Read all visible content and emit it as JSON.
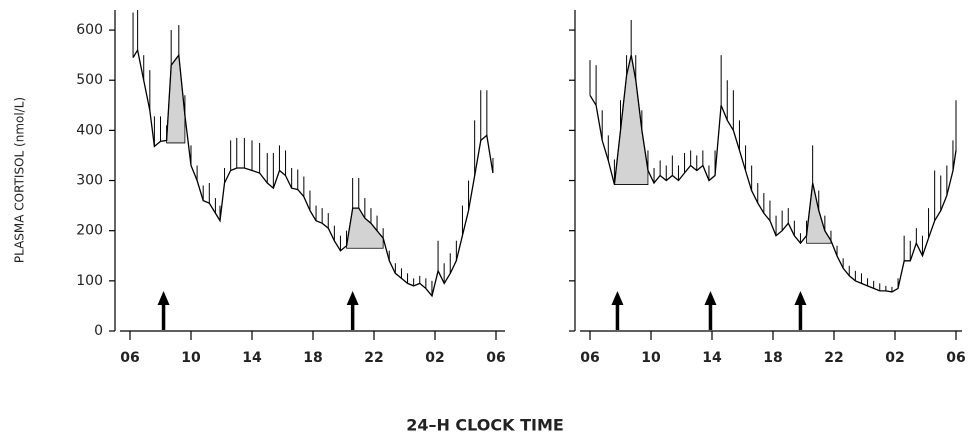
{
  "xlabel": "24–H CLOCK TIME",
  "chart_data": [
    {
      "type": "line",
      "ylabel": "PLASMA CORTISOL (nmol/L)",
      "xlim": [
        6,
        30
      ],
      "ylim": [
        0,
        640
      ],
      "xticks": [
        {
          "value": 6,
          "label": "06"
        },
        10,
        14,
        18,
        22,
        {
          "value": 26,
          "label": "02"
        },
        {
          "value": 30,
          "label": "06"
        }
      ],
      "yticks": [
        0,
        100,
        200,
        300,
        400,
        500,
        600
      ],
      "color": "#000000",
      "shade_color": "#d3d3d3",
      "x": [
        6.2,
        6.5,
        6.9,
        7.3,
        7.6,
        8.0,
        8.4,
        8.7,
        9.2,
        9.6,
        10.0,
        10.4,
        10.8,
        11.2,
        11.6,
        11.9,
        12.2,
        12.6,
        13.0,
        13.5,
        14.0,
        14.5,
        15.0,
        15.4,
        15.8,
        16.2,
        16.6,
        17.0,
        17.4,
        17.8,
        18.2,
        18.6,
        19.0,
        19.4,
        19.8,
        20.2,
        20.6,
        21.0,
        21.4,
        21.8,
        22.2,
        22.6,
        23.0,
        23.4,
        23.8,
        24.2,
        24.6,
        25.0,
        25.4,
        25.8,
        26.2,
        26.6,
        27.0,
        27.4,
        27.8,
        28.2,
        28.6,
        29.0,
        29.4,
        29.8
      ],
      "values": [
        545,
        560,
        500,
        440,
        368,
        378,
        380,
        530,
        550,
        430,
        330,
        300,
        260,
        255,
        235,
        220,
        295,
        320,
        325,
        325,
        320,
        315,
        295,
        285,
        320,
        310,
        285,
        282,
        268,
        240,
        220,
        215,
        205,
        180,
        160,
        170,
        245,
        245,
        225,
        215,
        200,
        185,
        140,
        115,
        105,
        95,
        90,
        95,
        85,
        70,
        120,
        95,
        115,
        140,
        190,
        240,
        310,
        380,
        390,
        315
      ],
      "errors": [
        90,
        80,
        50,
        80,
        60,
        50,
        30,
        70,
        60,
        40,
        40,
        30,
        30,
        40,
        30,
        30,
        30,
        60,
        60,
        60,
        60,
        60,
        60,
        70,
        50,
        50,
        40,
        40,
        40,
        40,
        30,
        30,
        30,
        30,
        30,
        30,
        60,
        60,
        40,
        30,
        30,
        20,
        20,
        20,
        20,
        20,
        15,
        15,
        20,
        30,
        60,
        40,
        40,
        40,
        60,
        60,
        110,
        100,
        90,
        30
      ],
      "pulses": [
        {
          "x": [
            8.4,
            9.6
          ],
          "baseline": 375
        },
        {
          "x": [
            20.2,
            22.6
          ],
          "baseline": 165
        }
      ],
      "arrows": [
        8.2,
        20.6
      ]
    },
    {
      "type": "line",
      "xlim": [
        6,
        30
      ],
      "ylim": [
        0,
        640
      ],
      "xticks": [
        {
          "value": 6,
          "label": "06"
        },
        10,
        14,
        18,
        22,
        {
          "value": 26,
          "label": "02"
        },
        {
          "value": 30,
          "label": "06"
        }
      ],
      "yticks": [
        0,
        100,
        200,
        300,
        400,
        500,
        600
      ],
      "color": "#000000",
      "shade_color": "#d3d3d3",
      "x": [
        6.0,
        6.4,
        6.8,
        7.2,
        7.6,
        8.0,
        8.4,
        8.7,
        9.0,
        9.4,
        9.8,
        10.2,
        10.6,
        11.0,
        11.4,
        11.8,
        12.2,
        12.6,
        13.0,
        13.4,
        13.8,
        14.2,
        14.6,
        15.0,
        15.4,
        15.8,
        16.2,
        16.6,
        17.0,
        17.4,
        17.8,
        18.2,
        18.6,
        19.0,
        19.4,
        19.8,
        20.2,
        20.6,
        21.0,
        21.4,
        21.8,
        22.2,
        22.6,
        23.0,
        23.4,
        23.8,
        24.2,
        24.6,
        25.0,
        25.4,
        25.8,
        26.2,
        26.6,
        27.0,
        27.4,
        27.8,
        28.2,
        28.6,
        29.0,
        29.4,
        29.8,
        30.0
      ],
      "values": [
        470,
        450,
        380,
        340,
        292,
        400,
        510,
        550,
        500,
        400,
        320,
        295,
        310,
        300,
        310,
        300,
        315,
        330,
        320,
        330,
        300,
        310,
        450,
        420,
        400,
        360,
        320,
        280,
        255,
        235,
        220,
        190,
        200,
        215,
        190,
        175,
        190,
        295,
        240,
        200,
        180,
        150,
        125,
        110,
        100,
        95,
        90,
        85,
        80,
        80,
        78,
        85,
        140,
        140,
        175,
        150,
        185,
        220,
        240,
        270,
        320,
        360
      ],
      "errors": [
        70,
        80,
        60,
        50,
        50,
        60,
        40,
        70,
        50,
        40,
        40,
        30,
        30,
        30,
        40,
        30,
        40,
        30,
        30,
        30,
        30,
        50,
        100,
        80,
        80,
        60,
        50,
        50,
        40,
        40,
        40,
        40,
        40,
        30,
        30,
        20,
        30,
        75,
        40,
        30,
        20,
        20,
        20,
        20,
        20,
        20,
        15,
        15,
        15,
        10,
        10,
        20,
        50,
        40,
        30,
        40,
        60,
        100,
        70,
        60,
        60,
        100
      ],
      "pulses": [
        {
          "x": [
            7.6,
            9.8
          ],
          "baseline": 292
        },
        {
          "x": [
            20.2,
            21.8
          ],
          "baseline": 175
        }
      ],
      "arrows": [
        7.8,
        13.9,
        19.8
      ]
    }
  ]
}
